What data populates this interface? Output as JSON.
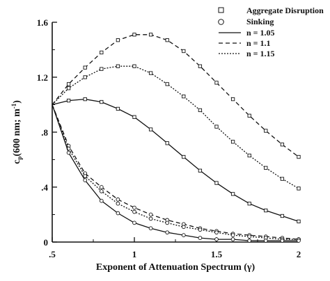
{
  "chart_data": {
    "type": "line",
    "xlabel": "Exponent of Attenuation Spectrum (γ)",
    "ylabel_main": "c",
    "ylabel_sub": "p",
    "ylabel_rest": "(600 nm; m",
    "ylabel_sup": "-1",
    "ylabel_close": ")",
    "xlim": [
      0.5,
      2.0
    ],
    "ylim": [
      0,
      1.6
    ],
    "x_ticks": [
      {
        "value": 0.5,
        "label": ".5"
      },
      {
        "value": 1.0,
        "label": "1"
      },
      {
        "value": 1.5,
        "label": "1.5"
      },
      {
        "value": 2.0,
        "label": "2"
      }
    ],
    "y_ticks": [
      {
        "value": 0,
        "label": "0"
      },
      {
        "value": 0.4,
        "label": ".4"
      },
      {
        "value": 0.8,
        "label": ".8"
      },
      {
        "value": 1.2,
        "label": "1.2"
      },
      {
        "value": 1.6,
        "label": "1.6"
      }
    ],
    "legend": {
      "position": "top-right",
      "markers": [
        {
          "marker": "square",
          "label": "Aggregate Disruption"
        },
        {
          "marker": "circle",
          "label": "Sinking"
        }
      ],
      "lines": [
        {
          "style": "solid",
          "label": "n = 1.05"
        },
        {
          "style": "dashed",
          "label": "n = 1.1"
        },
        {
          "style": "dotted",
          "label": "n = 1.15"
        }
      ]
    },
    "x": [
      0.5,
      0.6,
      0.7,
      0.8,
      0.9,
      1.0,
      1.1,
      1.2,
      1.3,
      1.4,
      1.5,
      1.6,
      1.7,
      1.8,
      1.9,
      2.0
    ],
    "series": [
      {
        "group": "Aggregate Disruption",
        "marker": "square",
        "style": "dashed",
        "values": [
          1.0,
          1.15,
          1.27,
          1.38,
          1.47,
          1.51,
          1.51,
          1.47,
          1.39,
          1.28,
          1.16,
          1.04,
          0.92,
          0.81,
          0.71,
          0.62
        ]
      },
      {
        "group": "Aggregate Disruption",
        "marker": "square",
        "style": "dotted",
        "values": [
          1.0,
          1.12,
          1.2,
          1.26,
          1.28,
          1.28,
          1.23,
          1.15,
          1.06,
          0.96,
          0.84,
          0.73,
          0.63,
          0.54,
          0.46,
          0.39
        ]
      },
      {
        "group": "Aggregate Disruption",
        "marker": "square",
        "style": "solid",
        "values": [
          1.0,
          1.03,
          1.04,
          1.02,
          0.97,
          0.91,
          0.82,
          0.72,
          0.62,
          0.52,
          0.43,
          0.35,
          0.28,
          0.23,
          0.19,
          0.15
        ]
      },
      {
        "group": "Sinking",
        "marker": "circle",
        "style": "dashed",
        "values": [
          1.0,
          0.7,
          0.5,
          0.4,
          0.31,
          0.25,
          0.2,
          0.16,
          0.13,
          0.1,
          0.08,
          0.06,
          0.05,
          0.04,
          0.03,
          0.02
        ]
      },
      {
        "group": "Sinking",
        "marker": "circle",
        "style": "dotted",
        "values": [
          1.0,
          0.68,
          0.48,
          0.37,
          0.28,
          0.22,
          0.17,
          0.14,
          0.11,
          0.09,
          0.07,
          0.05,
          0.04,
          0.03,
          0.02,
          0.02
        ]
      },
      {
        "group": "Sinking",
        "marker": "circle",
        "style": "solid",
        "values": [
          1.0,
          0.65,
          0.45,
          0.3,
          0.21,
          0.14,
          0.1,
          0.07,
          0.05,
          0.03,
          0.02,
          0.02,
          0.01,
          0.01,
          0.01,
          0.01
        ]
      }
    ]
  }
}
